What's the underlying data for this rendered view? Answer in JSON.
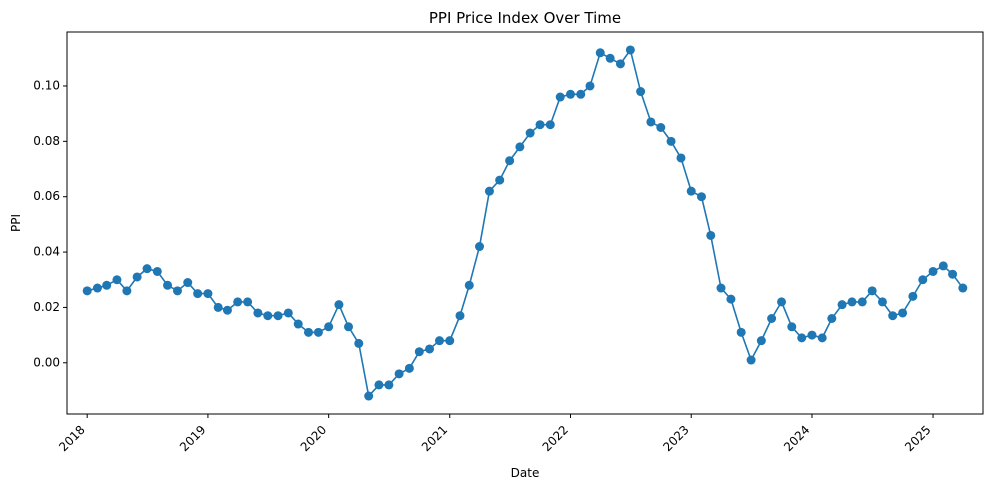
{
  "chart_data": {
    "type": "line",
    "title": "PPI Price Index Over Time",
    "xlabel": "Date",
    "ylabel": "PPI",
    "x_ticks": [
      "2018",
      "2019",
      "2020",
      "2021",
      "2022",
      "2023",
      "2024",
      "2025"
    ],
    "y_ticks": [
      "0.00",
      "0.02",
      "0.04",
      "0.06",
      "0.08",
      "0.10"
    ],
    "ylim": [
      -0.0185,
      0.1195
    ],
    "xlim": [
      "2017-11-01",
      "2025-06-01"
    ],
    "grid": false,
    "line_color": "#1f77b4",
    "series": [
      {
        "marker": "circle",
        "x": [
          "2018-01-01",
          "2018-02-01",
          "2018-03-01",
          "2018-04-01",
          "2018-05-01",
          "2018-06-01",
          "2018-07-01",
          "2018-08-01",
          "2018-09-01",
          "2018-10-01",
          "2018-11-01",
          "2018-12-01",
          "2019-01-01",
          "2019-02-01",
          "2019-03-01",
          "2019-04-01",
          "2019-05-01",
          "2019-06-01",
          "2019-07-01",
          "2019-08-01",
          "2019-09-01",
          "2019-10-01",
          "2019-11-01",
          "2019-12-01",
          "2020-01-01",
          "2020-02-01",
          "2020-03-01",
          "2020-04-01",
          "2020-05-01",
          "2020-06-01",
          "2020-07-01",
          "2020-08-01",
          "2020-09-01",
          "2020-10-01",
          "2020-11-01",
          "2020-12-01",
          "2021-01-01",
          "2021-02-01",
          "2021-03-01",
          "2021-04-01",
          "2021-05-01",
          "2021-06-01",
          "2021-07-01",
          "2021-08-01",
          "2021-09-01",
          "2021-10-01",
          "2021-11-01",
          "2021-12-01",
          "2022-01-01",
          "2022-02-01",
          "2022-03-01",
          "2022-04-01",
          "2022-05-01",
          "2022-06-01",
          "2022-07-01",
          "2022-08-01",
          "2022-09-01",
          "2022-10-01",
          "2022-11-01",
          "2022-12-01",
          "2023-01-01",
          "2023-02-01",
          "2023-03-01",
          "2023-04-01",
          "2023-05-01",
          "2023-06-01",
          "2023-07-01",
          "2023-08-01",
          "2023-09-01",
          "2023-10-01",
          "2023-11-01",
          "2023-12-01",
          "2024-01-01",
          "2024-02-01",
          "2024-03-01",
          "2024-04-01",
          "2024-05-01",
          "2024-06-01",
          "2024-07-01",
          "2024-08-01",
          "2024-09-01",
          "2024-10-01",
          "2024-11-01",
          "2024-12-01",
          "2025-01-01",
          "2025-02-01",
          "2025-03-01",
          "2025-04-01"
        ],
        "y": [
          0.026,
          0.027,
          0.028,
          0.03,
          0.026,
          0.031,
          0.034,
          0.033,
          0.028,
          0.026,
          0.029,
          0.025,
          0.025,
          0.02,
          0.019,
          0.022,
          0.022,
          0.018,
          0.017,
          0.017,
          0.018,
          0.014,
          0.011,
          0.011,
          0.013,
          0.021,
          0.013,
          0.007,
          -0.012,
          -0.008,
          -0.008,
          -0.004,
          -0.002,
          0.004,
          0.005,
          0.008,
          0.008,
          0.017,
          0.028,
          0.042,
          0.062,
          0.066,
          0.073,
          0.078,
          0.083,
          0.086,
          0.086,
          0.096,
          0.097,
          0.097,
          0.1,
          0.112,
          0.11,
          0.108,
          0.113,
          0.098,
          0.087,
          0.085,
          0.08,
          0.074,
          0.062,
          0.06,
          0.046,
          0.027,
          0.023,
          0.011,
          0.001,
          0.008,
          0.016,
          0.022,
          0.013,
          0.009,
          0.01,
          0.009,
          0.016,
          0.021,
          0.022,
          0.022,
          0.026,
          0.022,
          0.017,
          0.018,
          0.024,
          0.03,
          0.033,
          0.035,
          0.032,
          0.027
        ]
      }
    ]
  }
}
